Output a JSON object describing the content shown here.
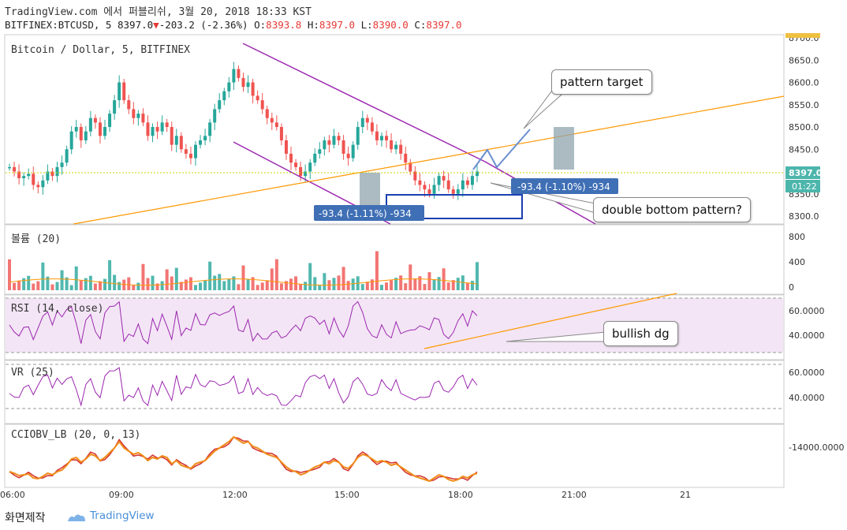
{
  "header": {
    "line1": "TradingView.com 에서 퍼블리쉬, 3월 20, 2018 18:33 KST",
    "symbol": "BITFINEX:BTCUSD, 5",
    "last": "8397.0",
    "down_arrow": "▼",
    "change": "-203.2 (-2.36%)",
    "o_label": "O:",
    "o_val": "8393.8",
    "h_label": "H:",
    "h_val": "8397.0",
    "l_label": "L:",
    "l_val": "8390.0",
    "c_label": "C:",
    "c_val": "8397.0"
  },
  "footer": {
    "ko": "화면제작",
    "brand": "TradingView"
  },
  "annotations": {
    "pattern_target": "pattern target",
    "double_bottom": "double bottom pattern?",
    "bullish_dg": "bullish dg",
    "measure_left": "-93.4 (-1.11%) -934",
    "measure_right": "-93.4 (-1.10%) -934"
  },
  "colors": {
    "up": "#26a69a",
    "down": "#ef5350",
    "channel": "#9c27b0",
    "trend": "#ff9800",
    "price_line": "#c8d400",
    "panel_border": "#cccccc",
    "rsi_band": "#f3e5f5"
  },
  "chart_data": {
    "type": "candlestick",
    "title": "Bitcoin / Dollar, 5, BITFINEX",
    "price_axis": {
      "ticks": [
        "8700.0",
        "8650.0",
        "8600.0",
        "8550.0",
        "8500.0",
        "8450.0",
        "8400.0",
        "8350.0",
        "8300.0"
      ],
      "last_price": "8397.0",
      "countdown": "01:22",
      "ylim": [
        8285,
        8710
      ]
    },
    "time_axis": {
      "ticks": [
        "06:00",
        "09:00",
        "12:00",
        "15:00",
        "18:00",
        "21:00",
        "21"
      ]
    },
    "close_series": [
      8410,
      8400,
      8385,
      8390,
      8395,
      8370,
      8365,
      8380,
      8400,
      8390,
      8410,
      8420,
      8450,
      8490,
      8500,
      8470,
      8490,
      8520,
      8510,
      8480,
      8500,
      8530,
      8560,
      8600,
      8560,
      8540,
      8520,
      8530,
      8510,
      8480,
      8500,
      8490,
      8510,
      8500,
      8460,
      8480,
      8450,
      8440,
      8430,
      8460,
      8470,
      8480,
      8510,
      8540,
      8560,
      8580,
      8600,
      8630,
      8610,
      8590,
      8600,
      8570,
      8560,
      8540,
      8520,
      8510,
      8500,
      8470,
      8440,
      8420,
      8410,
      8390,
      8400,
      8420,
      8440,
      8450,
      8470,
      8460,
      8480,
      8470,
      8440,
      8430,
      8460,
      8500,
      8520,
      8510,
      8490,
      8470,
      8480,
      8470,
      8450,
      8460,
      8440,
      8420,
      8400,
      8380,
      8370,
      8360,
      8350,
      8370,
      8390,
      8380,
      8360,
      8350,
      8360,
      8380,
      8370,
      8390,
      8400
    ],
    "channel": {
      "upper": [
        [
          12.0,
          8690
        ],
        [
          19.0,
          8410
        ]
      ],
      "lower": [
        [
          11.5,
          8470
        ],
        [
          19.2,
          8290
        ]
      ]
    },
    "trendline": [
      [
        6.5,
        8310
      ],
      [
        22.5,
        8570
      ]
    ],
    "volume": {
      "label": "볼륨 (20)",
      "ticks": [
        "800",
        "400",
        "0"
      ]
    },
    "rsi": {
      "label": "RSI (14, close)",
      "ticks": [
        "60.0000",
        "40.0000"
      ],
      "upper": 70,
      "lower": 30
    },
    "vr": {
      "label": "VR (25)",
      "ticks": [
        "60.0000",
        "40.0000"
      ]
    },
    "cciobv": {
      "label": "CCIOBV_LB (20, 0, 13)",
      "ticks": [
        "-14000.0000"
      ]
    }
  }
}
